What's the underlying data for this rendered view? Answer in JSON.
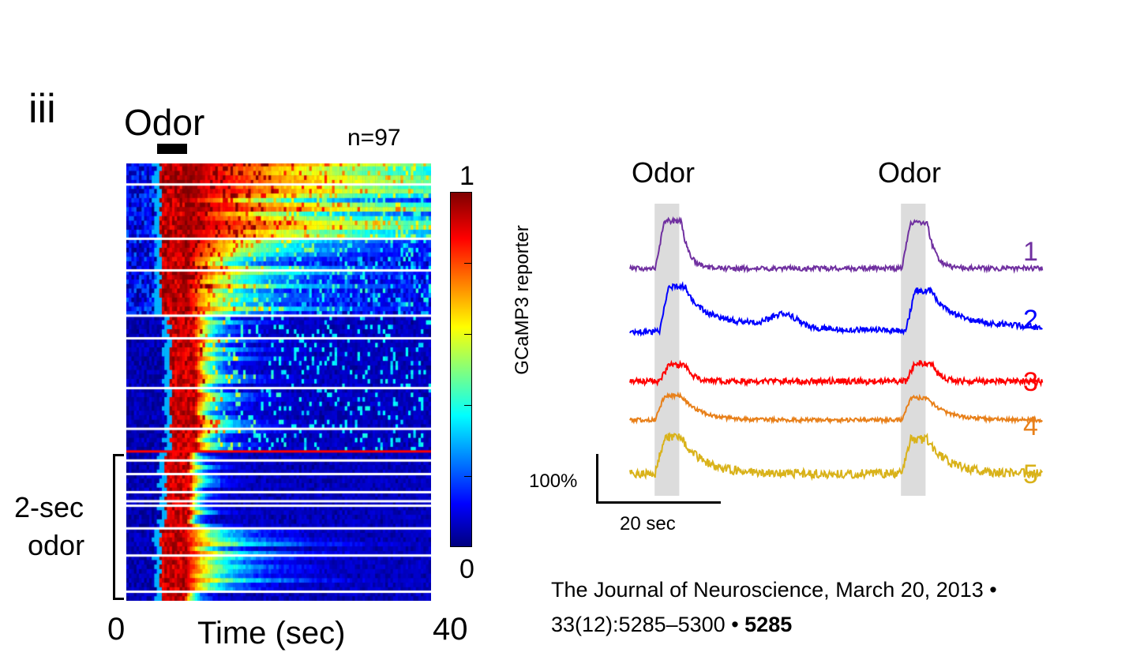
{
  "figure": {
    "panel_label": "iii",
    "heatmap_title": "Odor",
    "n_label": "n=97",
    "group_label_line1": "2-sec",
    "group_label_line2": "odor",
    "citation_line1": "The Journal of Neuroscience, March 20, 2013 •",
    "citation_line2": "33(12):5285–5300 • ",
    "citation_page": "5285"
  },
  "chart_data": [
    {
      "type": "heatmap",
      "rows": 97,
      "xlabel": "Time (sec)",
      "xlim": [
        0,
        40
      ],
      "x_tick_labels": [
        "0",
        "40"
      ],
      "odor_window_sec": [
        4,
        8
      ],
      "colorscale": "jet",
      "colorbar": {
        "label": "GCaMP3 reporter",
        "min": 0,
        "max": 1,
        "min_label": "0",
        "max_label": "1",
        "ticks": [
          0,
          0.2,
          0.4,
          0.6,
          0.8,
          1
        ]
      },
      "separator_rows": [
        5,
        17,
        24,
        34,
        39,
        50,
        59,
        66,
        69,
        73,
        75,
        76,
        81,
        87,
        95
      ],
      "highlight_separator_row": 64,
      "highlight_color": "#ff0000",
      "row_groups": [
        {
          "rows": [
            0,
            17
          ],
          "decay_sec": 30
        },
        {
          "rows": [
            17,
            34
          ],
          "decay_sec": 12
        },
        {
          "rows": [
            34,
            64
          ],
          "decay_sec": 3
        },
        {
          "rows": [
            64,
            81
          ],
          "decay_sec": 1.5
        },
        {
          "rows": [
            81,
            95
          ],
          "decay_sec": 6
        },
        {
          "rows": [
            95,
            97
          ],
          "decay_sec": 1.5
        }
      ]
    },
    {
      "type": "line",
      "xlim": [
        0,
        67
      ],
      "odor_windows_sec": [
        [
          4,
          8
        ],
        [
          44,
          48
        ]
      ],
      "odor_label": "Odor",
      "shade_color": "#dcdcdc",
      "scalebar": {
        "y_label": "100%",
        "y_value": 100,
        "x_label": "20 sec",
        "x_value": 20
      },
      "series": [
        {
          "name": "1",
          "color": "#7030a0",
          "peak_pct": [
            97,
            93
          ],
          "decay_sec": 1.2,
          "noise_pct": 5
        },
        {
          "name": "2",
          "color": "#0000ff",
          "peak_pct": [
            92,
            82
          ],
          "decay_sec": 9,
          "noise_pct": 6,
          "late_bump": {
            "t": 25,
            "pct": 25
          }
        },
        {
          "name": "3",
          "color": "#ff0000",
          "peak_pct": [
            33,
            37
          ],
          "decay_sec": 1.2,
          "noise_pct": 6
        },
        {
          "name": "4",
          "color": "#e8801a",
          "peak_pct": [
            50,
            45
          ],
          "decay_sec": 3,
          "noise_pct": 4
        },
        {
          "name": "5",
          "color": "#d9b21a",
          "peak_pct": [
            75,
            70
          ],
          "decay_sec": 3.5,
          "noise_pct": 9
        }
      ]
    }
  ]
}
